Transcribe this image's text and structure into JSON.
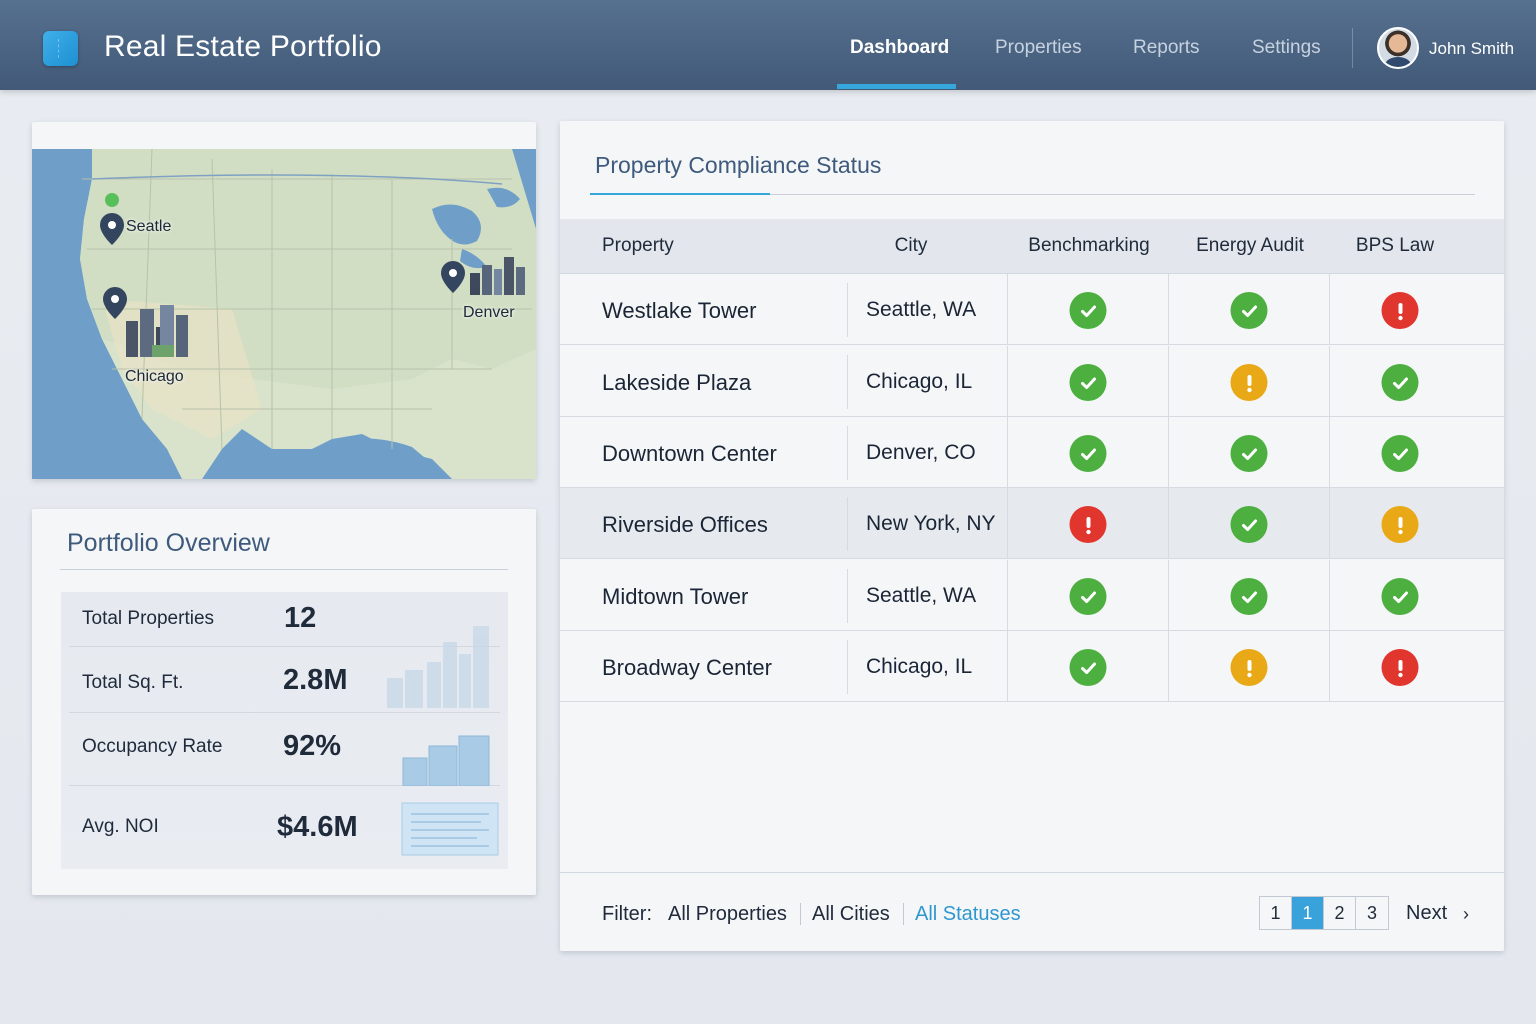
{
  "header": {
    "app_title": "Real Estate Portfolio",
    "nav": [
      {
        "label": "Dashboard",
        "active": true
      },
      {
        "label": "Properties",
        "active": false
      },
      {
        "label": "Reports",
        "active": false
      },
      {
        "label": "Settings",
        "active": false
      }
    ],
    "user_name": "John Smith",
    "accent_color": "#35a7dd"
  },
  "map": {
    "markers": [
      {
        "label": "Seatle",
        "icon": "map-pin-icon"
      },
      {
        "label": "Chicago",
        "icon": "map-pin-icon"
      },
      {
        "label": "Denver",
        "icon": "map-pin-icon"
      }
    ]
  },
  "overview": {
    "title": "Portfolio Overview",
    "stats": [
      {
        "label": "Total Properties",
        "value": "12"
      },
      {
        "label": "Total Sq. Ft.",
        "value": "2.8M"
      },
      {
        "label": "Occupancy Rate",
        "value": "92%"
      },
      {
        "label": "Avg. NOI",
        "value": "$4.6M"
      }
    ]
  },
  "compliance": {
    "title": "Property Compliance Status",
    "columns": [
      "Property",
      "City",
      "Benchmarking",
      "Energy Audit",
      "BPS Law"
    ],
    "rows": [
      {
        "property": "Westlake Tower",
        "city": "Seattle, WA",
        "benchmarking": "ok",
        "energy_audit": "ok",
        "bps_law": "error"
      },
      {
        "property": "Lakeside Plaza",
        "city": "Chicago, IL",
        "benchmarking": "ok",
        "energy_audit": "warning",
        "bps_law": "ok"
      },
      {
        "property": "Downtown Center",
        "city": "Denver, CO",
        "benchmarking": "ok",
        "energy_audit": "ok",
        "bps_law": "ok"
      },
      {
        "property": "Riverside Offices",
        "city": "New York, NY",
        "benchmarking": "error",
        "energy_audit": "ok",
        "bps_law": "warning"
      },
      {
        "property": "Midtown Tower",
        "city": "Seattle, WA",
        "benchmarking": "ok",
        "energy_audit": "ok",
        "bps_law": "ok"
      },
      {
        "property": "Broadway Center",
        "city": "Chicago, IL",
        "benchmarking": "ok",
        "energy_audit": "warning",
        "bps_law": "error"
      }
    ],
    "status_colors": {
      "ok": "#4caf3f",
      "warning": "#e9a816",
      "error": "#e0362e"
    },
    "filter": {
      "label": "Filter:",
      "options": [
        {
          "label": "All Properties",
          "active": false
        },
        {
          "label": "All Cities",
          "active": false
        },
        {
          "label": "All Statuses",
          "active": true
        }
      ]
    },
    "pagination": {
      "pages": [
        "1",
        "1",
        "2",
        "3"
      ],
      "current_index": 1,
      "next_label": "Next"
    }
  }
}
